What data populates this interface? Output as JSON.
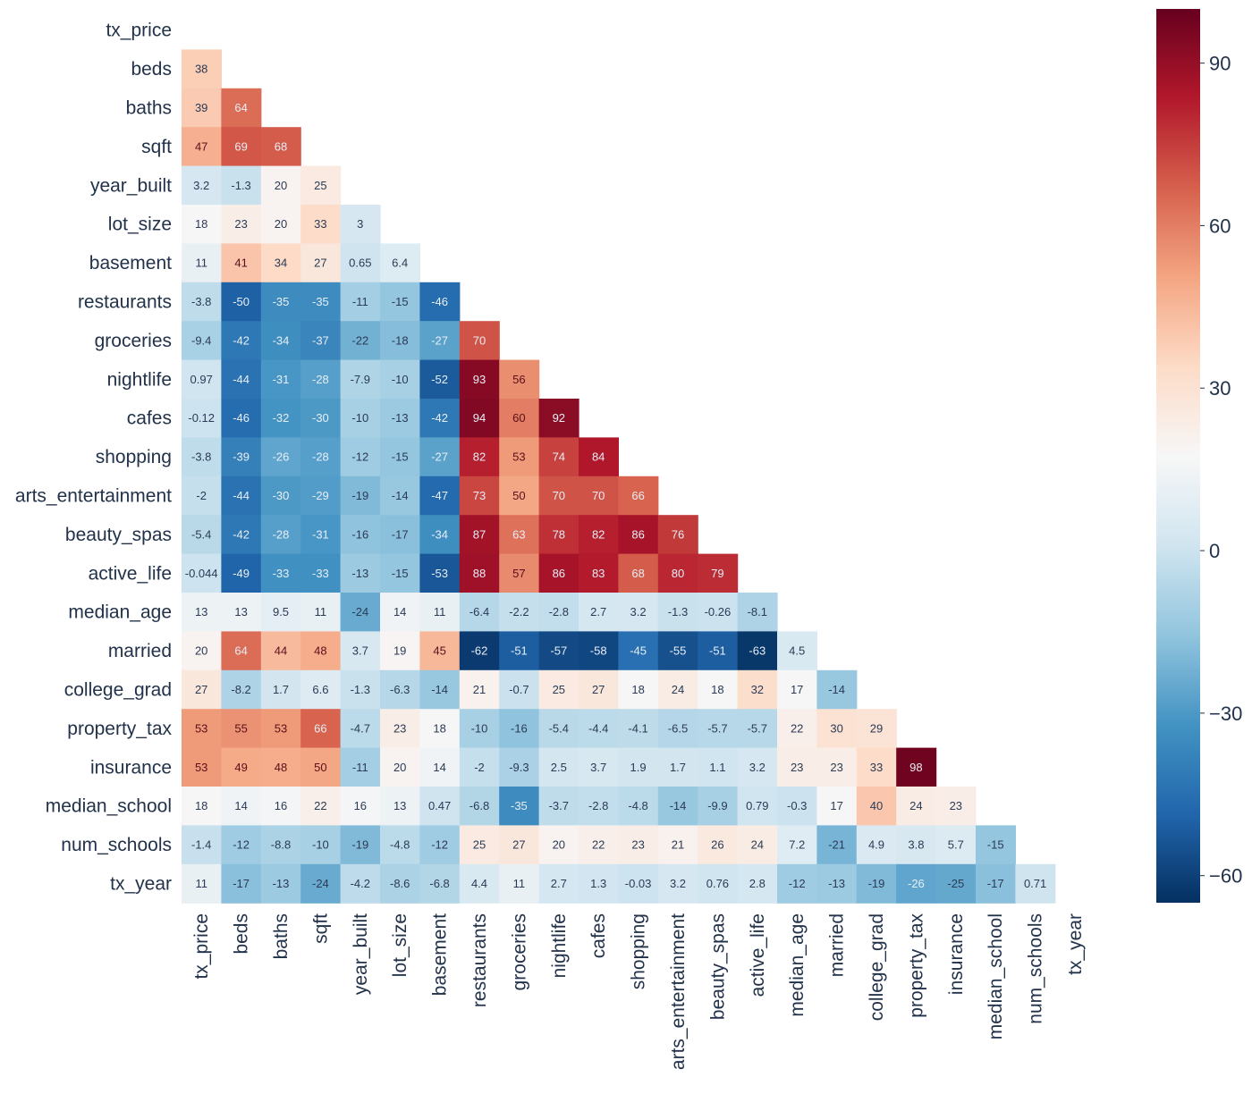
{
  "chart_data": {
    "type": "heatmap",
    "title": "",
    "xlabel": "",
    "ylabel": "",
    "mask": "upper-triangle-including-diagonal",
    "variables": [
      "tx_price",
      "beds",
      "baths",
      "sqft",
      "year_built",
      "lot_size",
      "basement",
      "restaurants",
      "groceries",
      "nightlife",
      "cafes",
      "shopping",
      "arts_entertainment",
      "beauty_spas",
      "active_life",
      "median_age",
      "married",
      "college_grad",
      "property_tax",
      "insurance",
      "median_school",
      "num_schools",
      "tx_year"
    ],
    "values": [
      [],
      [
        "38"
      ],
      [
        "39",
        "64"
      ],
      [
        "47",
        "69",
        "68"
      ],
      [
        "3.2",
        "-1.3",
        "20",
        "25"
      ],
      [
        "18",
        "23",
        "20",
        "33",
        "3"
      ],
      [
        "11",
        "41",
        "34",
        "27",
        "0.65",
        "6.4"
      ],
      [
        "-3.8",
        "-50",
        "-35",
        "-35",
        "-11",
        "-15",
        "-46"
      ],
      [
        "-9.4",
        "-42",
        "-34",
        "-37",
        "-22",
        "-18",
        "-27",
        "70"
      ],
      [
        "0.97",
        "-44",
        "-31",
        "-28",
        "-7.9",
        "-10",
        "-52",
        "93",
        "56"
      ],
      [
        "-0.12",
        "-46",
        "-32",
        "-30",
        "-10",
        "-13",
        "-42",
        "94",
        "60",
        "92"
      ],
      [
        "-3.8",
        "-39",
        "-26",
        "-28",
        "-12",
        "-15",
        "-27",
        "82",
        "53",
        "74",
        "84"
      ],
      [
        "-2",
        "-44",
        "-30",
        "-29",
        "-19",
        "-14",
        "-47",
        "73",
        "50",
        "70",
        "70",
        "66"
      ],
      [
        "-5.4",
        "-42",
        "-28",
        "-31",
        "-16",
        "-17",
        "-34",
        "87",
        "63",
        "78",
        "82",
        "86",
        "76"
      ],
      [
        "-0.044",
        "-49",
        "-33",
        "-33",
        "-13",
        "-15",
        "-53",
        "88",
        "57",
        "86",
        "83",
        "68",
        "80",
        "79"
      ],
      [
        "13",
        "13",
        "9.5",
        "11",
        "-24",
        "14",
        "11",
        "-6.4",
        "-2.2",
        "-2.8",
        "2.7",
        "3.2",
        "-1.3",
        "-0.26",
        "-8.1"
      ],
      [
        "20",
        "64",
        "44",
        "48",
        "3.7",
        "19",
        "45",
        "-62",
        "-51",
        "-57",
        "-58",
        "-45",
        "-55",
        "-51",
        "-63",
        "4.5"
      ],
      [
        "27",
        "-8.2",
        "1.7",
        "6.6",
        "-1.3",
        "-6.3",
        "-14",
        "21",
        "-0.7",
        "25",
        "27",
        "18",
        "24",
        "18",
        "32",
        "17",
        "-14"
      ],
      [
        "53",
        "55",
        "53",
        "66",
        "-4.7",
        "23",
        "18",
        "-10",
        "-16",
        "-5.4",
        "-4.4",
        "-4.1",
        "-6.5",
        "-5.7",
        "-5.7",
        "22",
        "30",
        "29"
      ],
      [
        "53",
        "49",
        "48",
        "50",
        "-11",
        "20",
        "14",
        "-2",
        "-9.3",
        "2.5",
        "3.7",
        "1.9",
        "1.7",
        "1.1",
        "3.2",
        "23",
        "23",
        "33",
        "98"
      ],
      [
        "18",
        "14",
        "16",
        "22",
        "16",
        "13",
        "0.47",
        "-6.8",
        "-35",
        "-3.7",
        "-2.8",
        "-4.8",
        "-14",
        "-9.9",
        "0.79",
        "-0.3",
        "17",
        "40",
        "24",
        "23"
      ],
      [
        "-1.4",
        "-12",
        "-8.8",
        "-10",
        "-19",
        "-4.8",
        "-12",
        "25",
        "27",
        "20",
        "22",
        "23",
        "21",
        "26",
        "24",
        "7.2",
        "-21",
        "4.9",
        "3.8",
        "5.7",
        "-15"
      ],
      [
        "11",
        "-17",
        "-13",
        "-24",
        "-4.2",
        "-8.6",
        "-6.8",
        "4.4",
        "11",
        "2.7",
        "1.3",
        "-0.03",
        "3.2",
        "0.76",
        "2.8",
        "-12",
        "-13",
        "-19",
        "-26",
        "-25",
        "-17",
        "0.71"
      ]
    ],
    "colorbar": {
      "colormap": "RdBu_r",
      "range": [
        -65,
        100
      ],
      "ticks": [
        90,
        60,
        30,
        0,
        -30,
        -60
      ],
      "tick_labels": [
        "90",
        "60",
        "30",
        "0",
        "−30",
        "−60"
      ]
    },
    "colors": {
      "high": "#b2182b",
      "mid": "#f7f7f7",
      "low": "#2166ac",
      "label": "#22324a"
    }
  }
}
